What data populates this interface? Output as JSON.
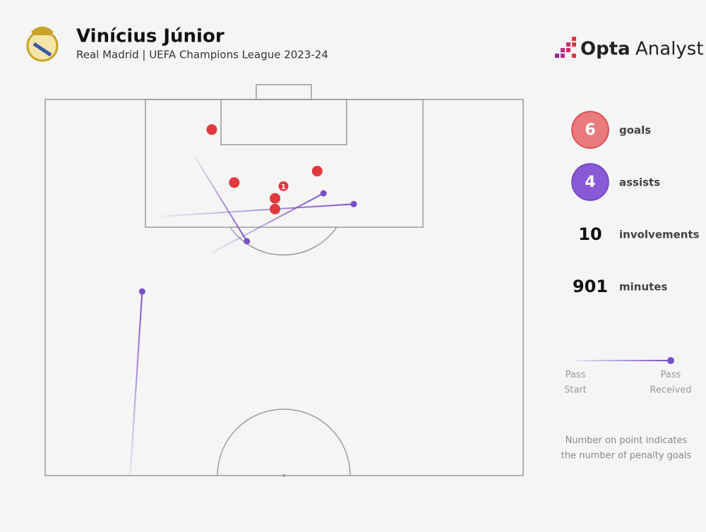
{
  "header": {
    "title": "Vinícius Júnior",
    "subtitle": "Real Madrid | UEFA Champions League 2023-24",
    "brand_a": "Opta",
    "brand_b": "Analyst"
  },
  "pitch": {
    "unit": "m",
    "width": 68,
    "half_length": 52.5,
    "goals": [
      {
        "x": 23.7,
        "y": 4.2
      },
      {
        "x": 26.9,
        "y": 11.6
      },
      {
        "x": 32.7,
        "y": 13.8
      },
      {
        "x": 32.7,
        "y": 15.3
      },
      {
        "x": 38.7,
        "y": 10.0
      },
      {
        "x": 33.9,
        "y": 12.1,
        "label": "1"
      }
    ],
    "assists": [
      {
        "start": [
          21.3,
          8.0
        ],
        "end": [
          28.7,
          19.8
        ]
      },
      {
        "start": [
          23.7,
          21.4
        ],
        "end": [
          39.6,
          13.1
        ]
      },
      {
        "start": [
          16.8,
          16.3
        ],
        "end": [
          43.9,
          14.6
        ]
      },
      {
        "start": [
          12.1,
          52.5
        ],
        "end": [
          13.8,
          26.8
        ]
      }
    ],
    "goal_color": "#e0393e",
    "assist_color": "#7b4fc9"
  },
  "stats": [
    {
      "value": "6",
      "label": "goals"
    },
    {
      "value": "4",
      "label": "assists"
    },
    {
      "value": "10",
      "label": "involvements"
    },
    {
      "value": "901",
      "label": "minutes"
    }
  ],
  "legend": {
    "start": "Pass\nStart",
    "end": "Pass\nReceived"
  },
  "note": "Number on point indicates\nthe number of penalty goals"
}
